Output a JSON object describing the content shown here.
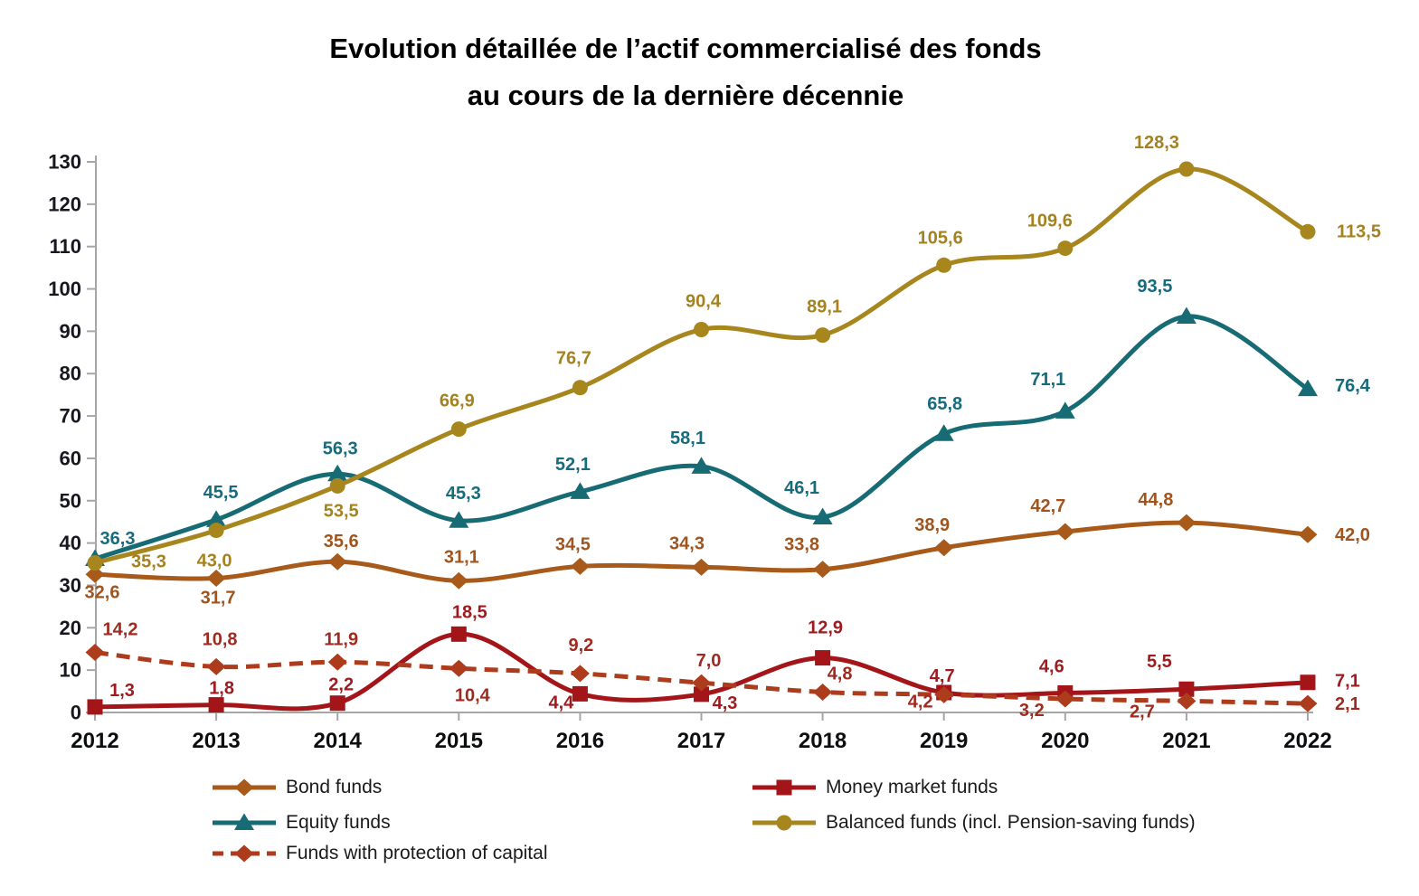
{
  "title": {
    "line1": "Evolution détaillée de l’actif commercialisé des fonds",
    "line2": "au cours de la dernière décennie"
  },
  "chart_data": {
    "type": "line",
    "x_categories": [
      "2012",
      "2013",
      "2014",
      "2015",
      "2016",
      "2017",
      "2018",
      "2019",
      "2020",
      "2021",
      "2022"
    ],
    "y_axis": {
      "min": 0,
      "max": 130,
      "step": 10,
      "tick_labels": [
        "0",
        "10",
        "20",
        "30",
        "40",
        "50",
        "60",
        "70",
        "80",
        "90",
        "100",
        "110",
        "120",
        "130"
      ]
    },
    "decimal_separator": ",",
    "grid": "off",
    "legend_position": "bottom",
    "axis_color": "#A6A6A6",
    "y_tick_label_color": "#17171F",
    "x_tick_label_color": "#0D0E10",
    "series": [
      {
        "name": "Bond funds",
        "color": "#A85A1B",
        "label_color": "#A0541E",
        "marker": "diamond",
        "line_style": "solid",
        "values": [
          32.6,
          31.7,
          35.6,
          31.1,
          34.5,
          34.3,
          33.8,
          38.9,
          42.7,
          44.8,
          42.0
        ],
        "labels": [
          "32,6",
          "31,7",
          "35,6",
          "31,1",
          "34,5",
          "34,3",
          "33,8",
          "38,9",
          "42,7",
          "44,8",
          "42,0"
        ],
        "label_placements": [
          [
            8,
            20
          ],
          [
            2,
            22
          ],
          [
            4,
            -22
          ],
          [
            3,
            -26
          ],
          [
            -8,
            -24
          ],
          [
            -16,
            -26
          ],
          [
            -23,
            -27
          ],
          [
            -13,
            -25
          ],
          [
            -19,
            -28
          ],
          [
            -34,
            -25
          ],
          [
            30,
            1,
            "start"
          ]
        ]
      },
      {
        "name": "Money market funds",
        "color": "#A31518",
        "label_color": "#9E1B20",
        "marker": "square",
        "line_style": "solid",
        "values": [
          1.3,
          1.8,
          2.2,
          18.5,
          4.4,
          4.3,
          12.9,
          4.7,
          4.6,
          5.5,
          7.1
        ],
        "labels": [
          "1,3",
          "1,8",
          "2,2",
          "18,5",
          "4,4",
          "4,3",
          "12,9",
          "4,7",
          "4,6",
          "5,5",
          "7,1"
        ],
        "label_placements": [
          [
            30,
            -18
          ],
          [
            6,
            -18
          ],
          [
            4,
            -20
          ],
          [
            12,
            -24
          ],
          [
            -21,
            10
          ],
          [
            26,
            10
          ],
          [
            3,
            -33
          ],
          [
            -2,
            -18
          ],
          [
            -15,
            -29
          ],
          [
            -30,
            -30
          ],
          [
            30,
            -1,
            "start"
          ]
        ]
      },
      {
        "name": "Equity funds",
        "color": "#166B74",
        "label_color": "#166B7D",
        "marker": "triangle",
        "line_style": "solid",
        "values": [
          36.3,
          45.5,
          56.3,
          45.3,
          52.1,
          58.1,
          46.1,
          65.8,
          71.1,
          93.5,
          76.4
        ],
        "labels": [
          "36,3",
          "45,5",
          "56,3",
          "45,3",
          "52,1",
          "58,1",
          "46,1",
          "65,8",
          "71,1",
          "93,5",
          "76,4"
        ],
        "label_placements": [
          [
            25,
            -22
          ],
          [
            5,
            -30
          ],
          [
            3,
            -28
          ],
          [
            5,
            -30
          ],
          [
            -8,
            -30
          ],
          [
            -15,
            -31
          ],
          [
            -23,
            -32
          ],
          [
            1,
            -33
          ],
          [
            -19,
            -35
          ],
          [
            -35,
            -33
          ],
          [
            30,
            -3,
            "start"
          ]
        ]
      },
      {
        "name": "Balanced funds (incl. Pension-saving funds)",
        "color": "#A8861E",
        "label_color": "#A58220",
        "marker": "circle",
        "line_style": "solid",
        "values": [
          35.3,
          43.0,
          53.5,
          66.9,
          76.7,
          90.4,
          89.1,
          105.6,
          109.6,
          128.3,
          113.5
        ],
        "labels": [
          "35,3",
          "43,0",
          "53,5",
          "66,9",
          "76,7",
          "90,4",
          "89,1",
          "105,6",
          "109,6",
          "128,3",
          "113,5"
        ],
        "label_placements": [
          [
            40,
            -1,
            "start"
          ],
          [
            -2,
            34
          ],
          [
            4,
            28
          ],
          [
            -2,
            -31
          ],
          [
            -7,
            -32
          ],
          [
            2,
            -31
          ],
          [
            2,
            -31
          ],
          [
            -4,
            -30
          ],
          [
            -17,
            -30
          ],
          [
            -33,
            -29
          ],
          [
            32,
            0,
            "start"
          ]
        ]
      },
      {
        "name": "Funds with protection of capital",
        "color": "#AD3C1D",
        "label_color": "#9F2A20",
        "marker": "diamond",
        "line_style": "dashed",
        "values": [
          14.2,
          10.8,
          11.9,
          10.4,
          9.2,
          7.0,
          4.8,
          4.2,
          3.2,
          2.7,
          2.1
        ],
        "labels": [
          "14,2",
          "10,8",
          "11,9",
          "10,4",
          "9,2",
          "7,0",
          "4,8",
          "4,2",
          "3,2",
          "2,7",
          "2,1"
        ],
        "label_placements": [
          [
            28,
            -25
          ],
          [
            4,
            -30
          ],
          [
            4,
            -25
          ],
          [
            15,
            30
          ],
          [
            1,
            -31
          ],
          [
            8,
            -24
          ],
          [
            19,
            -20
          ],
          [
            -26,
            8
          ],
          [
            -37,
            13
          ],
          [
            -49,
            12
          ],
          [
            30,
            1,
            "start"
          ]
        ]
      }
    ],
    "legend_columns": [
      [
        0,
        2,
        4
      ],
      [
        1,
        3
      ]
    ]
  }
}
